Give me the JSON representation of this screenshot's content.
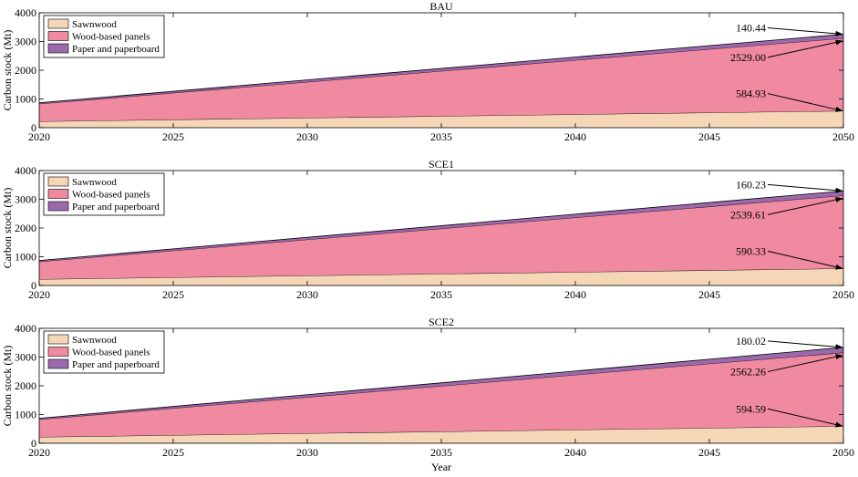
{
  "figure": {
    "xlabel": "Year"
  },
  "colors": {
    "sawnwood": "#f5d7b8",
    "wood_based_panels": "#f08aa0",
    "paper_and_paperboard": "#9b6aad",
    "axis": "#000000"
  },
  "chart_data": [
    {
      "type": "area",
      "title": "BAU",
      "xlabel": "",
      "ylabel": "Carbon stock (Mt)",
      "xlim": [
        2020,
        2050
      ],
      "ylim": [
        0,
        4000
      ],
      "xticks": [
        2020,
        2025,
        2030,
        2035,
        2040,
        2045,
        2050
      ],
      "yticks": [
        0,
        1000,
        2000,
        3000,
        4000
      ],
      "stacked": true,
      "legend_position": "top-left",
      "x": [
        2020,
        2050
      ],
      "series": [
        {
          "name": "Sawnwood",
          "color": "#f5d7b8",
          "values": [
            220,
            584.93
          ]
        },
        {
          "name": "Wood-based panels",
          "color": "#f08aa0",
          "values": [
            610,
            2529.0
          ]
        },
        {
          "name": "Paper and paperboard",
          "color": "#9b6aad",
          "values": [
            40,
            140.44
          ]
        }
      ],
      "annotations": [
        {
          "text": "140.44",
          "series": "Paper and paperboard"
        },
        {
          "text": "2529.00",
          "series": "Wood-based panels"
        },
        {
          "text": "584.93",
          "series": "Sawnwood"
        }
      ]
    },
    {
      "type": "area",
      "title": "SCE1",
      "xlabel": "",
      "ylabel": "Carbon stock (Mt)",
      "xlim": [
        2020,
        2050
      ],
      "ylim": [
        0,
        4000
      ],
      "xticks": [
        2020,
        2025,
        2030,
        2035,
        2040,
        2045,
        2050
      ],
      "yticks": [
        0,
        1000,
        2000,
        3000,
        4000
      ],
      "stacked": true,
      "legend_position": "top-left",
      "x": [
        2020,
        2050
      ],
      "series": [
        {
          "name": "Sawnwood",
          "color": "#f5d7b8",
          "values": [
            220,
            590.33
          ]
        },
        {
          "name": "Wood-based panels",
          "color": "#f08aa0",
          "values": [
            610,
            2539.61
          ]
        },
        {
          "name": "Paper and paperboard",
          "color": "#9b6aad",
          "values": [
            40,
            160.23
          ]
        }
      ],
      "annotations": [
        {
          "text": "160.23",
          "series": "Paper and paperboard"
        },
        {
          "text": "2539.61",
          "series": "Wood-based panels"
        },
        {
          "text": "590.33",
          "series": "Sawnwood"
        }
      ]
    },
    {
      "type": "area",
      "title": "SCE2",
      "xlabel": "Year",
      "ylabel": "Carbon stock (Mt)",
      "xlim": [
        2020,
        2050
      ],
      "ylim": [
        0,
        4000
      ],
      "xticks": [
        2020,
        2025,
        2030,
        2035,
        2040,
        2045,
        2050
      ],
      "yticks": [
        0,
        1000,
        2000,
        3000,
        4000
      ],
      "stacked": true,
      "legend_position": "top-left",
      "x": [
        2020,
        2050
      ],
      "series": [
        {
          "name": "Sawnwood",
          "color": "#f5d7b8",
          "values": [
            220,
            594.59
          ]
        },
        {
          "name": "Wood-based panels",
          "color": "#f08aa0",
          "values": [
            610,
            2562.26
          ]
        },
        {
          "name": "Paper and paperboard",
          "color": "#9b6aad",
          "values": [
            40,
            180.02
          ]
        }
      ],
      "annotations": [
        {
          "text": "180.02",
          "series": "Paper and paperboard"
        },
        {
          "text": "2562.26",
          "series": "Wood-based panels"
        },
        {
          "text": "594.59",
          "series": "Sawnwood"
        }
      ]
    }
  ]
}
